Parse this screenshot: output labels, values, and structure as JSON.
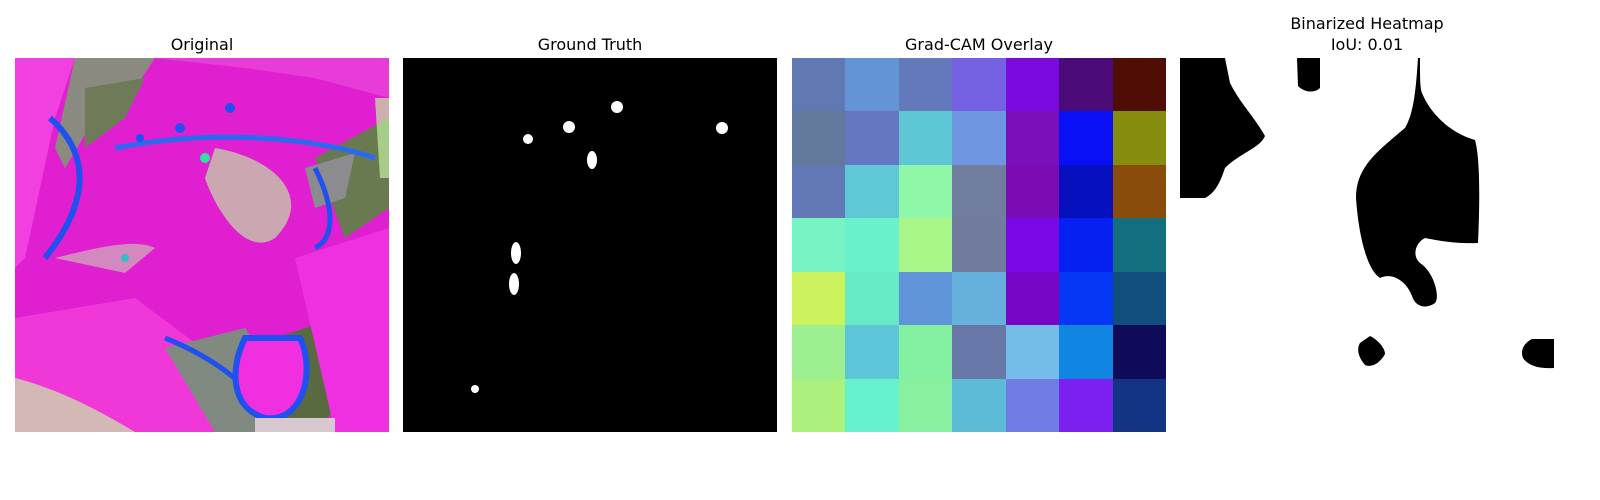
{
  "panels": {
    "original": {
      "title": "Original"
    },
    "ground_truth": {
      "title": "Ground Truth"
    },
    "gradcam": {
      "title": "Grad-CAM Overlay",
      "cells": [
        [
          "#6179b2",
          "#6294d6",
          "#6479bb",
          "#7462e3",
          "#7a0ae0",
          "#4b0c7a",
          "#4f0d06"
        ],
        [
          "#637a9c",
          "#6677c2",
          "#5fc6d6",
          "#6f96e0",
          "#7c0fbc",
          "#0a10f5",
          "#858c0e"
        ],
        [
          "#6378b7",
          "#5ec8d6",
          "#8ef8a8",
          "#717d9f",
          "#7b0cb4",
          "#0710bf",
          "#8a4c0b"
        ],
        [
          "#78f3c3",
          "#6af1cc",
          "#a8f588",
          "#717b9e",
          "#7a09e8",
          "#0620f2",
          "#136e7f"
        ],
        [
          "#ccf25e",
          "#66eac6",
          "#5f95d8",
          "#65b0dd",
          "#7806c7",
          "#0637f4",
          "#114e80"
        ],
        [
          "#9df08f",
          "#5dc6d8",
          "#83f0a2",
          "#6778a8",
          "#73bde8",
          "#1185e2",
          "#100a5a"
        ],
        [
          "#acf07e",
          "#64f1cc",
          "#88f09f",
          "#5cbcd8",
          "#717ce4",
          "#7c1ff2",
          "#113584"
        ]
      ]
    },
    "binarized": {
      "title_line1": "Binarized Heatmap",
      "title_line2": "IoU: 0.01"
    }
  }
}
